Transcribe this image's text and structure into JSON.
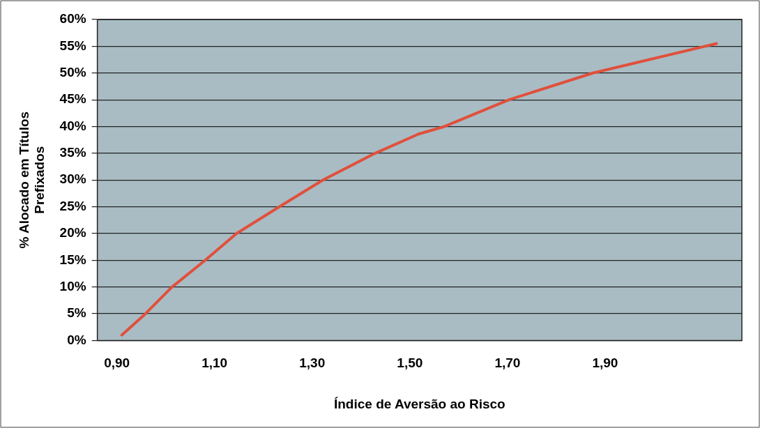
{
  "chart_data": {
    "type": "line",
    "xlabel": "Índice de Aversão ao Risco",
    "ylabel": "% Alocado em Títulos Prefixados",
    "series": [
      {
        "color": "#e0503c",
        "x": [
          0.91,
          0.954,
          1.013,
          1.081,
          1.145,
          1.233,
          1.322,
          1.429,
          1.518,
          1.571,
          1.703,
          1.875,
          2.128
        ],
        "values": [
          1,
          4.6,
          10,
          15,
          20,
          25,
          30,
          35,
          38.6,
          40,
          45,
          50,
          55.5
        ]
      }
    ],
    "xlim": [
      0.86,
      2.18
    ],
    "xticks": [
      {
        "value": 0.9,
        "label": "0,90"
      },
      {
        "value": 1.1,
        "label": "1,10"
      },
      {
        "value": 1.3,
        "label": "1,30"
      },
      {
        "value": 1.5,
        "label": "1,50"
      },
      {
        "value": 1.7,
        "label": "1,70"
      },
      {
        "value": 1.9,
        "label": "1,90"
      }
    ],
    "ylim": [
      0,
      60
    ],
    "yticks": [
      {
        "value": 0,
        "label": "0%"
      },
      {
        "value": 5,
        "label": "5%"
      },
      {
        "value": 10,
        "label": "10%"
      },
      {
        "value": 15,
        "label": "15%"
      },
      {
        "value": 20,
        "label": "20%"
      },
      {
        "value": 25,
        "label": "25%"
      },
      {
        "value": 30,
        "label": "30%"
      },
      {
        "value": 35,
        "label": "35%"
      },
      {
        "value": 40,
        "label": "40%"
      },
      {
        "value": 45,
        "label": "45%"
      },
      {
        "value": 50,
        "label": "50%"
      },
      {
        "value": 55,
        "label": "55%"
      },
      {
        "value": 60,
        "label": "60%"
      }
    ],
    "grid": "y",
    "legend": false,
    "marker": "none",
    "line_style": "solid"
  }
}
